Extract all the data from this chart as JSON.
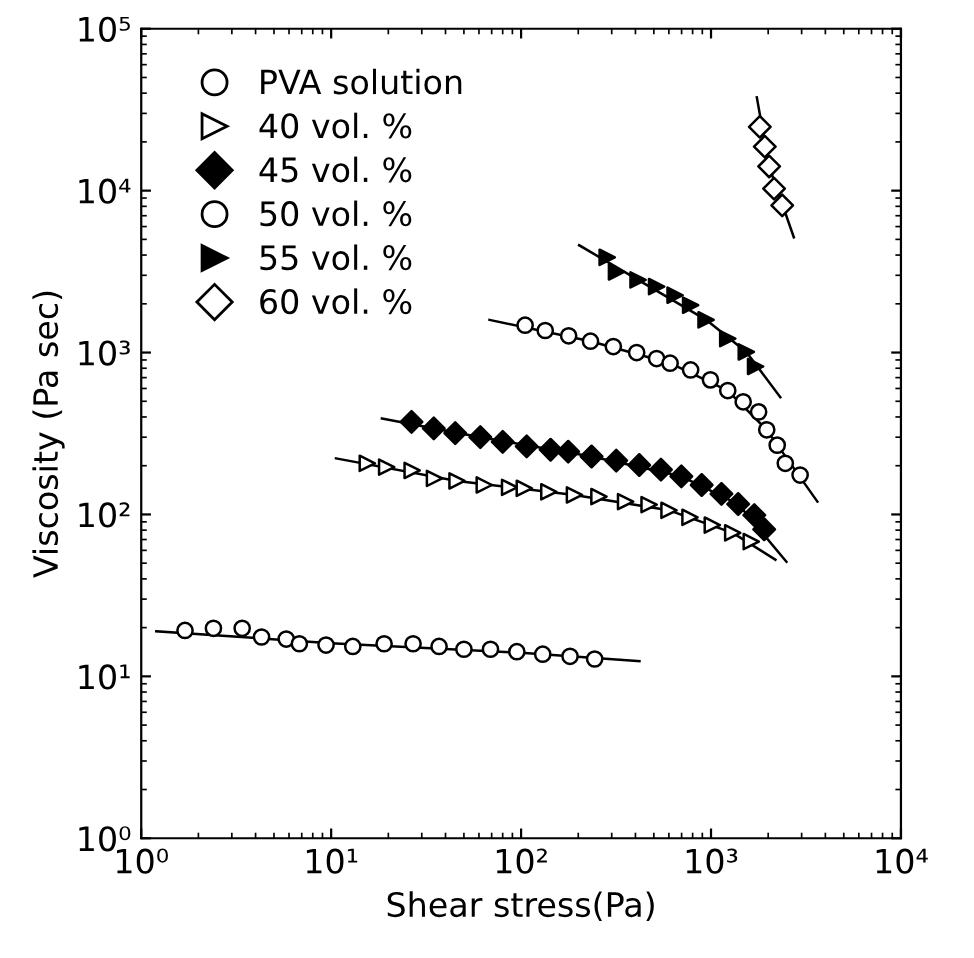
{
  "chart_data": {
    "type": "scatter",
    "xlabel": "Shear stress(Pa)",
    "ylabel": "Viscosity (Pa sec)",
    "log": "xy",
    "xlim": [
      1,
      10000
    ],
    "ylim": [
      1,
      100000
    ],
    "xticks": [
      {
        "value": 1,
        "label": "10⁰"
      },
      {
        "value": 10,
        "label": "10¹"
      },
      {
        "value": 100,
        "label": "10²"
      },
      {
        "value": 1000,
        "label": "10³"
      },
      {
        "value": 10000,
        "label": "10⁴"
      }
    ],
    "yticks": [
      {
        "value": 1,
        "label": "10⁰"
      },
      {
        "value": 10,
        "label": "10¹"
      },
      {
        "value": 100,
        "label": "10²"
      },
      {
        "value": 1000,
        "label": "10³"
      },
      {
        "value": 10000,
        "label": "10⁴"
      },
      {
        "value": 100000,
        "label": "10⁵"
      }
    ],
    "grid": false,
    "legend": "top left",
    "series": [
      {
        "name": "PVA solution",
        "color": "#000000",
        "marker": "circle-open",
        "x": [
          1.7,
          2.4,
          3.4,
          4.3,
          5.8,
          6.8,
          9.4,
          13,
          19,
          27,
          37,
          50,
          69,
          95,
          130,
          181,
          244
        ],
        "values": [
          19.2,
          19.8,
          19.8,
          17.5,
          17.0,
          15.9,
          15.6,
          15.3,
          15.9,
          15.9,
          15.3,
          14.7,
          14.7,
          14.2,
          13.7,
          13.3,
          12.8
        ]
      },
      {
        "name": "40 vol. %",
        "color": "#000000",
        "marker": "triangle-right-open",
        "x": [
          15.5,
          19.6,
          26.7,
          35,
          46,
          64,
          87,
          104,
          140,
          191,
          257,
          355,
          472,
          601,
          775,
          1016,
          1301,
          1629
        ],
        "values": [
          207,
          196,
          187,
          167,
          161,
          152,
          147,
          145,
          138,
          132,
          129,
          120,
          115,
          106,
          96,
          86,
          77,
          68
        ]
      },
      {
        "name": "45 vol. %",
        "color": "#000000",
        "marker": "diamond",
        "x": [
          26.5,
          34.7,
          45,
          61,
          80,
          107,
          143,
          177,
          235,
          317,
          419,
          545,
          698,
          893,
          1135,
          1390,
          1690,
          1905
        ],
        "values": [
          373,
          340,
          318,
          300,
          281,
          263,
          251,
          244,
          228,
          215,
          202,
          189,
          172,
          152,
          134,
          116,
          99,
          81
        ]
      },
      {
        "name": "50 vol. %",
        "color": "#000000",
        "marker": "circle-open",
        "x": [
          105,
          134,
          178,
          232,
          306,
          406,
          517,
          609,
          781,
          993,
          1225,
          1477,
          1781,
          1965,
          2231,
          2461,
          2945
        ],
        "values": [
          1476,
          1368,
          1268,
          1175,
          1089,
          1000,
          918,
          859,
          781,
          678,
          582,
          496,
          430,
          333,
          268,
          207,
          175
        ]
      },
      {
        "name": "55 vol. %",
        "color": "#000000",
        "marker": "triangle-right",
        "x": [
          284,
          318,
          413,
          517,
          647,
          781,
          942,
          1225,
          1534,
          1717
        ],
        "values": [
          3874,
          3146,
          2811,
          2556,
          2259,
          1960,
          1592,
          1219,
          1009,
          820
        ]
      },
      {
        "name": "60 vol. %",
        "color": "#000000",
        "marker": "diamond-open",
        "x": [
          1807,
          1919,
          2023,
          2148,
          2371
        ],
        "values": [
          24800,
          18700,
          14100,
          10300,
          8110
        ]
      },
      {
        "type": "line",
        "color": "#000000",
        "marker": "none",
        "x": [
          1.2,
          10,
          100,
          420
        ],
        "values": [
          19,
          16,
          14,
          12.4
        ]
      },
      {
        "type": "line",
        "color": "#000000",
        "marker": "none",
        "x": [
          10.6,
          46,
          191,
          601,
          1301,
          2183
        ],
        "values": [
          222,
          161,
          132,
          106,
          77,
          52.5
        ]
      },
      {
        "type": "line",
        "color": "#000000",
        "marker": "none",
        "x": [
          18.5,
          61,
          235,
          698,
          1390,
          2496
        ],
        "values": [
          392,
          300,
          228,
          172,
          116,
          51
        ]
      },
      {
        "type": "line",
        "color": "#000000",
        "marker": "none",
        "x": [
          68.2,
          232,
          609,
          1225,
          1965,
          3631
        ],
        "values": [
          1592,
          1175,
          859,
          582,
          333,
          120
        ]
      },
      {
        "type": "line",
        "color": "#000000",
        "marker": "none",
        "x": [
          202,
          413,
          942,
          1534,
          2317
        ],
        "values": [
          4603,
          2811,
          1592,
          1009,
          530
        ]
      },
      {
        "type": "line",
        "color": "#000000",
        "marker": "none",
        "x": [
          1742,
          2023,
          2729
        ],
        "values": [
          37700,
          14100,
          5150
        ]
      }
    ]
  }
}
